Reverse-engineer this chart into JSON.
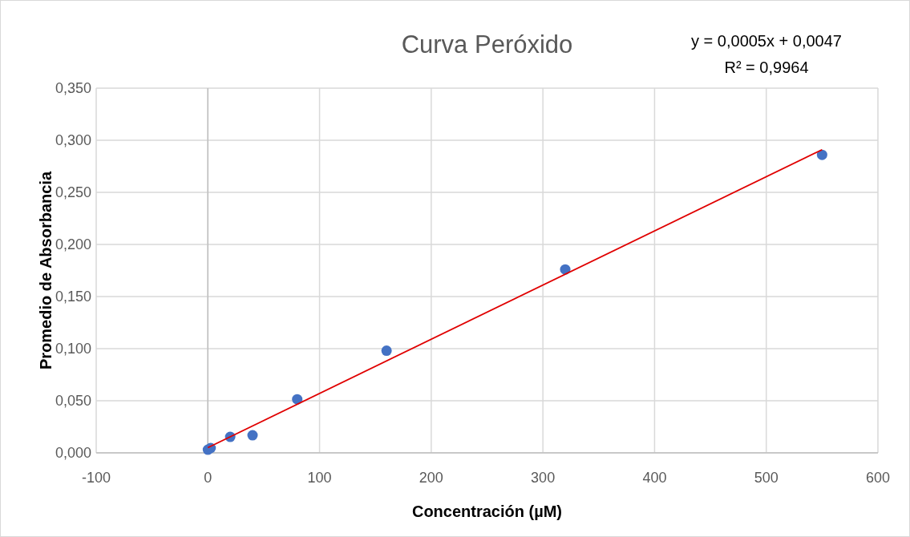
{
  "chart_data": {
    "type": "scatter",
    "title": "Curva Peróxido",
    "xlabel": "Concentración (µM)",
    "ylabel": "Promedio de Absorbancia",
    "annotations": [
      "y = 0,0005x + 0,0047",
      "R² = 0,9964"
    ],
    "series": [
      {
        "color": "#4472c4",
        "marker": "circle",
        "x": [
          0,
          2.5,
          20,
          40,
          80,
          160,
          320,
          550
        ],
        "values": [
          0.003,
          0.0046,
          0.0153,
          0.0169,
          0.0514,
          0.098,
          0.176,
          0.286
        ]
      },
      {
        "type": "line",
        "color": "#e00000",
        "x": [
          0,
          550
        ],
        "values": [
          0.005,
          0.291
        ]
      }
    ],
    "xlim": [
      -100,
      600
    ],
    "xticks": [
      -100,
      {
        "value": 0,
        "label": "0"
      },
      100,
      200,
      300,
      400,
      500,
      600
    ],
    "ylim": [
      0,
      0.35
    ],
    "yticks": [
      {
        "value": 0,
        "label": "0,000"
      },
      {
        "value": 0.05,
        "label": "0,050"
      },
      {
        "value": 0.1,
        "label": "0,100"
      },
      {
        "value": 0.15,
        "label": "0,150"
      },
      {
        "value": 0.2,
        "label": "0,200"
      },
      {
        "value": 0.25,
        "label": "0,250"
      },
      {
        "value": 0.3,
        "label": "0,300"
      },
      {
        "value": 0.35,
        "label": "0,350"
      }
    ],
    "grid": true,
    "line_style": "solid"
  }
}
